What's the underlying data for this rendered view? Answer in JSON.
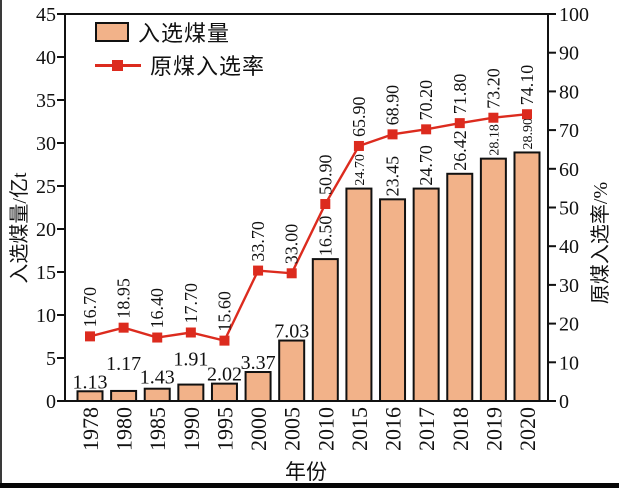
{
  "chart_data": {
    "type": "bar",
    "categories": [
      "1978",
      "1980",
      "1985",
      "1990",
      "1995",
      "2000",
      "2005",
      "2010",
      "2015",
      "2016",
      "2017",
      "2018",
      "2019",
      "2020"
    ],
    "series": [
      {
        "name": "入选煤量",
        "kind": "bar",
        "axis": "left",
        "values": [
          1.13,
          1.17,
          1.43,
          1.91,
          2.02,
          3.37,
          7.03,
          16.5,
          24.7,
          23.45,
          24.7,
          26.42,
          28.18,
          28.9
        ]
      },
      {
        "name": "原煤入选率",
        "kind": "line",
        "axis": "right",
        "values": [
          16.7,
          18.95,
          16.4,
          17.7,
          15.6,
          33.7,
          33.0,
          50.9,
          65.9,
          68.9,
          70.2,
          71.8,
          73.2,
          74.1
        ]
      }
    ],
    "title": "",
    "xlabel": "年份",
    "ylabel_left": "入选煤量/亿t",
    "ylabel_right": "原煤入选率/%",
    "left_axis": {
      "min": 0,
      "max": 45,
      "step": 5
    },
    "right_axis": {
      "min": 0,
      "max": 100,
      "step": 10
    },
    "legend_position": "top-left",
    "grid": false,
    "colors": {
      "bar_fill": "#F2B289",
      "bar_stroke": "#111111",
      "line": "#DC2B1E",
      "text": "#111111"
    }
  }
}
